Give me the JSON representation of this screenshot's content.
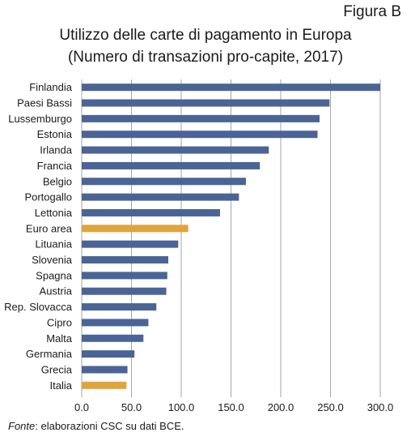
{
  "figure_label": "Figura B",
  "source": {
    "label": "Fonte",
    "text": ": elaborazioni CSC su dati BCE."
  },
  "chart_data": {
    "type": "bar",
    "orientation": "horizontal",
    "title": "Utilizzo delle carte di pagamento in Europa",
    "subtitle": "(Numero di transazioni pro-capite, 2017)",
    "xlim": [
      0,
      300
    ],
    "xticks": [
      "0.0",
      "50.0",
      "100.0",
      "150.0",
      "200.0",
      "250.0",
      "300.0"
    ],
    "grid": "vertical",
    "colors": {
      "default": "#4a6496",
      "highlight": "#e0a43c"
    },
    "categories": [
      "Finlandia",
      "Paesi Bassi",
      "Lussemburgo",
      "Estonia",
      "Irlanda",
      "Francia",
      "Belgio",
      "Portogallo",
      "Lettonia",
      "Euro area",
      "Lituania",
      "Slovenia",
      "Spagna",
      "Austria",
      "Rep. Slovacca",
      "Cipro",
      "Malta",
      "Germania",
      "Grecia",
      "Italia"
    ],
    "values": [
      300,
      249,
      239,
      237,
      188,
      179,
      165,
      158,
      139,
      107,
      97,
      87,
      86,
      85,
      75,
      67,
      62,
      53,
      46,
      45
    ],
    "highlight": [
      "Euro area",
      "Italia"
    ]
  }
}
